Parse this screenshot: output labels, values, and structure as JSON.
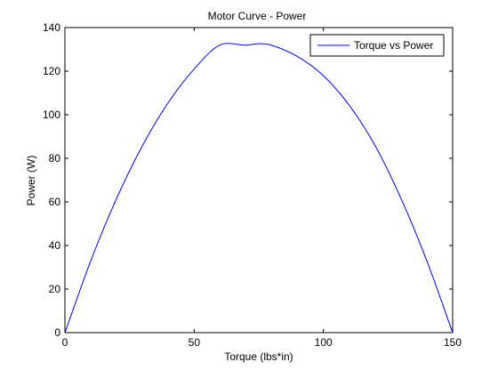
{
  "chart_data": {
    "type": "line",
    "title": "Motor Curve - Power",
    "xlabel": "Torque (lbs*in)",
    "ylabel": "Power (W)",
    "xlim": [
      0,
      150
    ],
    "ylim": [
      0,
      140
    ],
    "xticks": [
      0,
      50,
      100,
      150
    ],
    "yticks": [
      0,
      20,
      40,
      60,
      80,
      100,
      120,
      140
    ],
    "grid": false,
    "legend_position": "top-right",
    "series": [
      {
        "name": "Torque vs Power",
        "color": "#0000ff",
        "x": [
          0,
          10,
          20,
          30,
          40,
          50,
          60,
          70,
          75,
          80,
          90,
          100,
          110,
          120,
          130,
          140,
          150
        ],
        "y": [
          0,
          33.0,
          61.6,
          85.8,
          105.6,
          121.0,
          132.0,
          131.9,
          132.6,
          131.9,
          126.7,
          117.9,
          104.3,
          85.8,
          61.6,
          33.0,
          0
        ]
      }
    ]
  }
}
